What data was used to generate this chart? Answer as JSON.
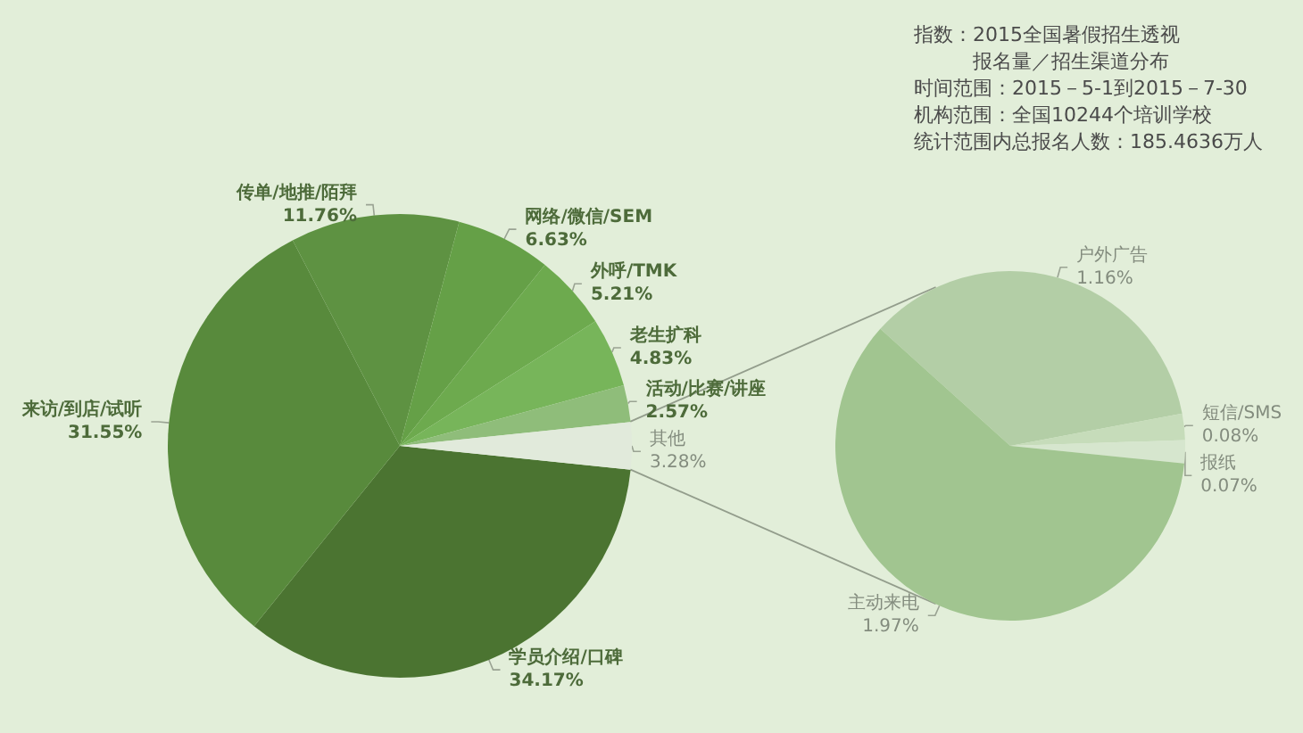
{
  "chart_data": [
    {
      "type": "pie",
      "categories": [
        "学员介绍/口碑",
        "来访/到店/试听",
        "传单/地推/陌拜",
        "网络/微信/SEM",
        "外呼/TMK",
        "老生扩科",
        "活动/比赛/讲座",
        "其他"
      ],
      "values": [
        34.17,
        31.55,
        11.76,
        6.63,
        5.21,
        4.83,
        2.57,
        3.28
      ],
      "value_labels": [
        "34.17%",
        "31.55%",
        "11.76%",
        "6.63%",
        "5.21%",
        "4.83%",
        "2.57%",
        "3.28%"
      ],
      "colors": [
        "#4b7431",
        "#588a3c",
        "#5e9242",
        "#65a047",
        "#6daa4e",
        "#77b55a",
        "#8fbd7a",
        "#e1eadb"
      ]
    },
    {
      "type": "pie",
      "categories": [
        "户外广告",
        "短信/SMS",
        "报纸",
        "主动来电"
      ],
      "values": [
        1.16,
        0.08,
        0.07,
        1.97
      ],
      "value_labels": [
        "1.16%",
        "0.08%",
        "0.07%",
        "1.97%"
      ],
      "colors": [
        "#b3cea6",
        "#c6dcba",
        "#d6e6ce",
        "#a1c590"
      ]
    },
    {
      "type": "other",
      "annotations": [
        "指数：2015全国暑假招生透视",
        "报名量／招生渠道分布",
        "时间范围：2015－5-1到2015－7-30",
        "机构范围：全国10244个培训学校",
        "统计范围内总报名人数：185.4636万人"
      ]
    }
  ]
}
